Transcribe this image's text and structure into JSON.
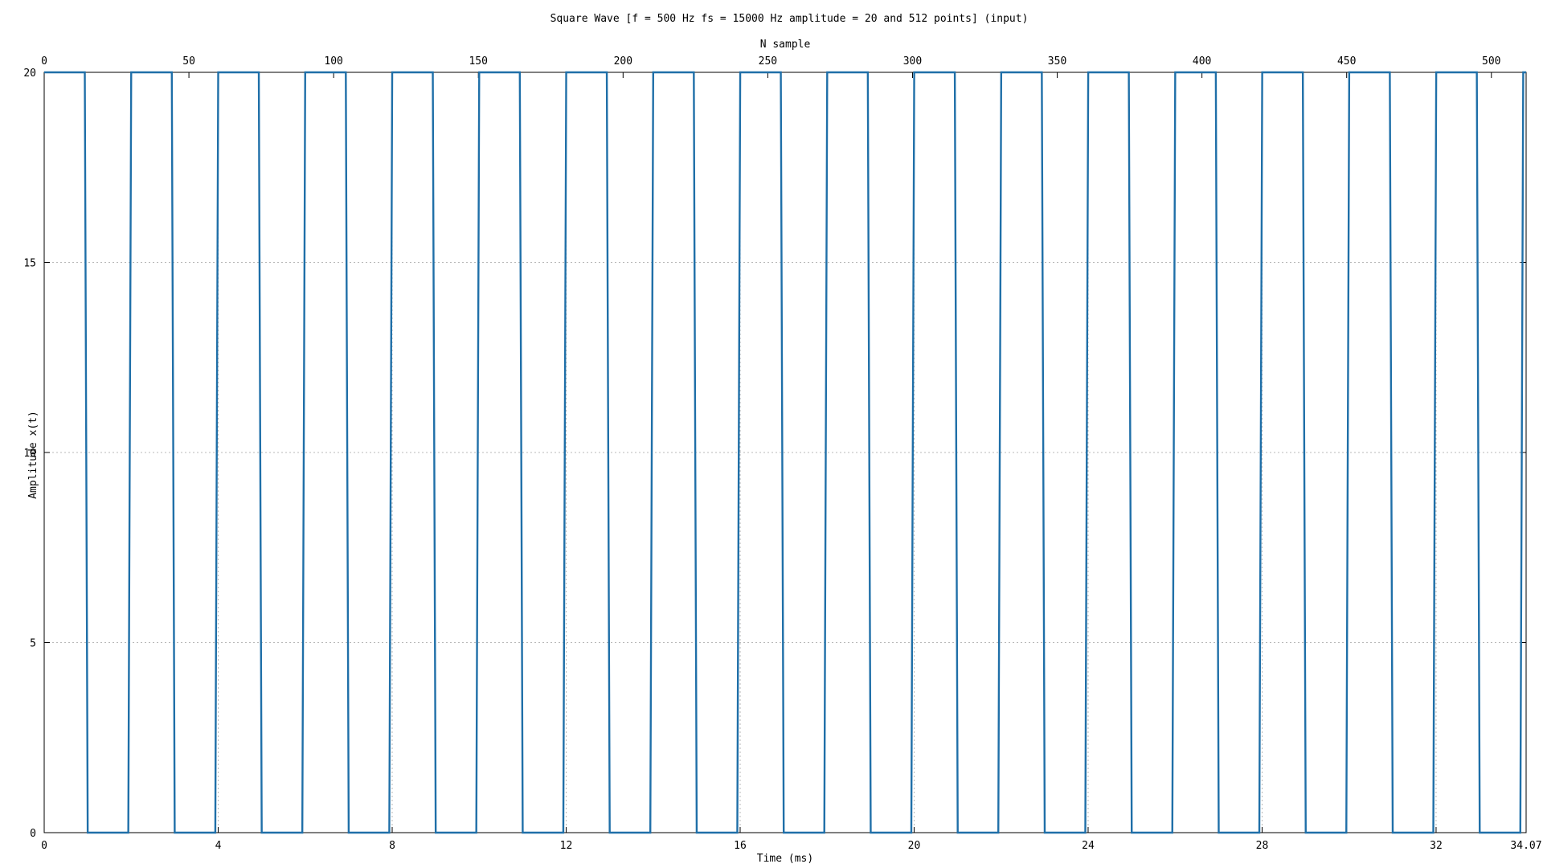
{
  "chart_data": {
    "type": "line",
    "title": "Square Wave [f = 500 Hz fs = 15000 Hz amplitude = 20 and 512 points] (input)",
    "xlabel": "Time (ms)",
    "ylabel": "Amplitude x(t)",
    "x2label": "N sample",
    "xlim": [
      0,
      34.07
    ],
    "ylim": [
      0,
      20
    ],
    "x2lim": [
      0,
      512
    ],
    "x_ticks": [
      "0",
      "4",
      "8",
      "12",
      "16",
      "20",
      "24",
      "28",
      "32",
      "34.07"
    ],
    "y_ticks": [
      "0",
      "5",
      "10",
      "15",
      "20"
    ],
    "x2_ticks": [
      "0",
      "50",
      "100",
      "150",
      "200",
      "250",
      "300",
      "350",
      "400",
      "450",
      "500"
    ],
    "grid": true,
    "legend": "none",
    "sample_rate_hz": 15000,
    "frequency_hz": 500,
    "amplitude": 20,
    "num_points": 512,
    "series": [
      {
        "color": "#1f6fa8",
        "description": "square wave alternating between 20 and 0, starting high; period 30 samples (2 ms), each half 15 samples (1 ms), with rounded edge samples at ~17.5/12.5/7.5/2.5 during transitions",
        "pattern": "high 15 samples, low 15 samples, repeating over 512 samples"
      }
    ]
  }
}
